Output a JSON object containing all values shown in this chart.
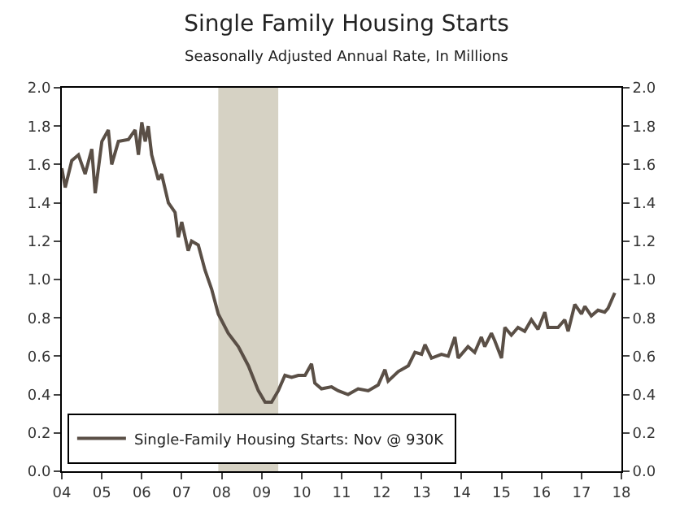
{
  "chart_data": {
    "type": "line",
    "title": "Single Family Housing Starts",
    "subtitle": "Seasonally Adjusted Annual Rate, In Millions",
    "x": [
      "2004-01",
      "2004-02",
      "2004-04",
      "2004-06",
      "2004-08",
      "2004-10",
      "2004-11",
      "2005-01",
      "2005-03",
      "2005-04",
      "2005-06",
      "2005-09",
      "2005-11",
      "2005-12",
      "2006-01",
      "2006-02",
      "2006-03",
      "2006-04",
      "2006-06",
      "2006-07",
      "2006-09",
      "2006-11",
      "2006-12",
      "2007-01",
      "2007-03",
      "2007-04",
      "2007-06",
      "2007-08",
      "2007-10",
      "2007-12",
      "2008-03",
      "2008-06",
      "2008-09",
      "2008-12",
      "2009-02",
      "2009-04",
      "2009-06",
      "2009-08",
      "2009-10",
      "2009-12",
      "2010-02",
      "2010-04",
      "2010-05",
      "2010-07",
      "2010-10",
      "2010-12",
      "2011-03",
      "2011-06",
      "2011-09",
      "2011-12",
      "2012-02",
      "2012-03",
      "2012-06",
      "2012-09",
      "2012-11",
      "2013-01",
      "2013-02",
      "2013-04",
      "2013-07",
      "2013-09",
      "2013-11",
      "2013-12",
      "2014-03",
      "2014-05",
      "2014-07",
      "2014-08",
      "2014-10",
      "2014-11",
      "2015-01",
      "2015-02",
      "2015-04",
      "2015-06",
      "2015-08",
      "2015-10",
      "2015-12",
      "2016-02",
      "2016-03",
      "2016-06",
      "2016-08",
      "2016-09",
      "2016-11",
      "2017-01",
      "2017-02",
      "2017-04",
      "2017-06",
      "2017-08",
      "2017-09",
      "2017-11"
    ],
    "series": [
      {
        "name": "Single-Family Housing Starts: Nov @ 930K",
        "color": "#5a4f46",
        "values": [
          1.58,
          1.48,
          1.62,
          1.65,
          1.55,
          1.68,
          1.45,
          1.72,
          1.78,
          1.6,
          1.72,
          1.73,
          1.78,
          1.65,
          1.82,
          1.72,
          1.8,
          1.65,
          1.52,
          1.55,
          1.4,
          1.35,
          1.22,
          1.3,
          1.15,
          1.2,
          1.18,
          1.05,
          0.95,
          0.82,
          0.72,
          0.65,
          0.55,
          0.42,
          0.36,
          0.36,
          0.42,
          0.5,
          0.49,
          0.5,
          0.5,
          0.56,
          0.46,
          0.43,
          0.44,
          0.42,
          0.4,
          0.43,
          0.42,
          0.45,
          0.53,
          0.47,
          0.52,
          0.55,
          0.62,
          0.61,
          0.66,
          0.59,
          0.61,
          0.6,
          0.7,
          0.59,
          0.65,
          0.62,
          0.7,
          0.65,
          0.72,
          0.68,
          0.59,
          0.75,
          0.71,
          0.75,
          0.73,
          0.79,
          0.74,
          0.83,
          0.75,
          0.75,
          0.79,
          0.73,
          0.87,
          0.82,
          0.86,
          0.81,
          0.84,
          0.83,
          0.85,
          0.93
        ]
      }
    ],
    "xlim": [
      "2004-01-01",
      "2018-01-01"
    ],
    "xticks": [
      {
        "value": "2004-01-01",
        "label": "04"
      },
      {
        "value": "2005-01-01",
        "label": "05"
      },
      {
        "value": "2006-01-01",
        "label": "06"
      },
      {
        "value": "2007-01-01",
        "label": "07"
      },
      {
        "value": "2008-01-01",
        "label": "08"
      },
      {
        "value": "2009-01-01",
        "label": "09"
      },
      {
        "value": "2010-01-01",
        "label": "10"
      },
      {
        "value": "2011-01-01",
        "label": "11"
      },
      {
        "value": "2012-01-01",
        "label": "12"
      },
      {
        "value": "2013-01-01",
        "label": "13"
      },
      {
        "value": "2014-01-01",
        "label": "14"
      },
      {
        "value": "2015-01-01",
        "label": "15"
      },
      {
        "value": "2016-01-01",
        "label": "16"
      },
      {
        "value": "2017-01-01",
        "label": "17"
      },
      {
        "value": "2018-01-01",
        "label": "18"
      }
    ],
    "ylim": [
      0,
      2
    ],
    "yticks": [
      {
        "value": 0,
        "label": "0.0"
      },
      {
        "value": 0.2,
        "label": "0.2"
      },
      {
        "value": 0.4,
        "label": "0.4"
      },
      {
        "value": 0.6,
        "label": "0.6"
      },
      {
        "value": 0.8,
        "label": "0.8"
      },
      {
        "value": 1,
        "label": "1.0"
      },
      {
        "value": 1.2,
        "label": "1.2"
      },
      {
        "value": 1.4,
        "label": "1.4"
      },
      {
        "value": 1.6,
        "label": "1.6"
      },
      {
        "value": 1.8,
        "label": "1.8"
      },
      {
        "value": 2,
        "label": "2.0"
      }
    ],
    "y2lim": [
      0,
      2
    ],
    "y2ticks": [
      {
        "value": 0,
        "label": "0.0"
      },
      {
        "value": 0.2,
        "label": "0.2"
      },
      {
        "value": 0.4,
        "label": "0.4"
      },
      {
        "value": 0.6,
        "label": "0.6"
      },
      {
        "value": 0.8,
        "label": "0.8"
      },
      {
        "value": 1,
        "label": "1.0"
      },
      {
        "value": 1.2,
        "label": "1.2"
      },
      {
        "value": 1.4,
        "label": "1.4"
      },
      {
        "value": 1.6,
        "label": "1.6"
      },
      {
        "value": 1.8,
        "label": "1.8"
      },
      {
        "value": 2,
        "label": "2.0"
      }
    ],
    "bands": [
      {
        "axis": "x",
        "from": "2007-12-01",
        "to": "2009-06-01",
        "color": "#d6d2c4"
      }
    ],
    "legend": "bottom left",
    "grid": false,
    "marker": "none",
    "line_style": "solid"
  }
}
